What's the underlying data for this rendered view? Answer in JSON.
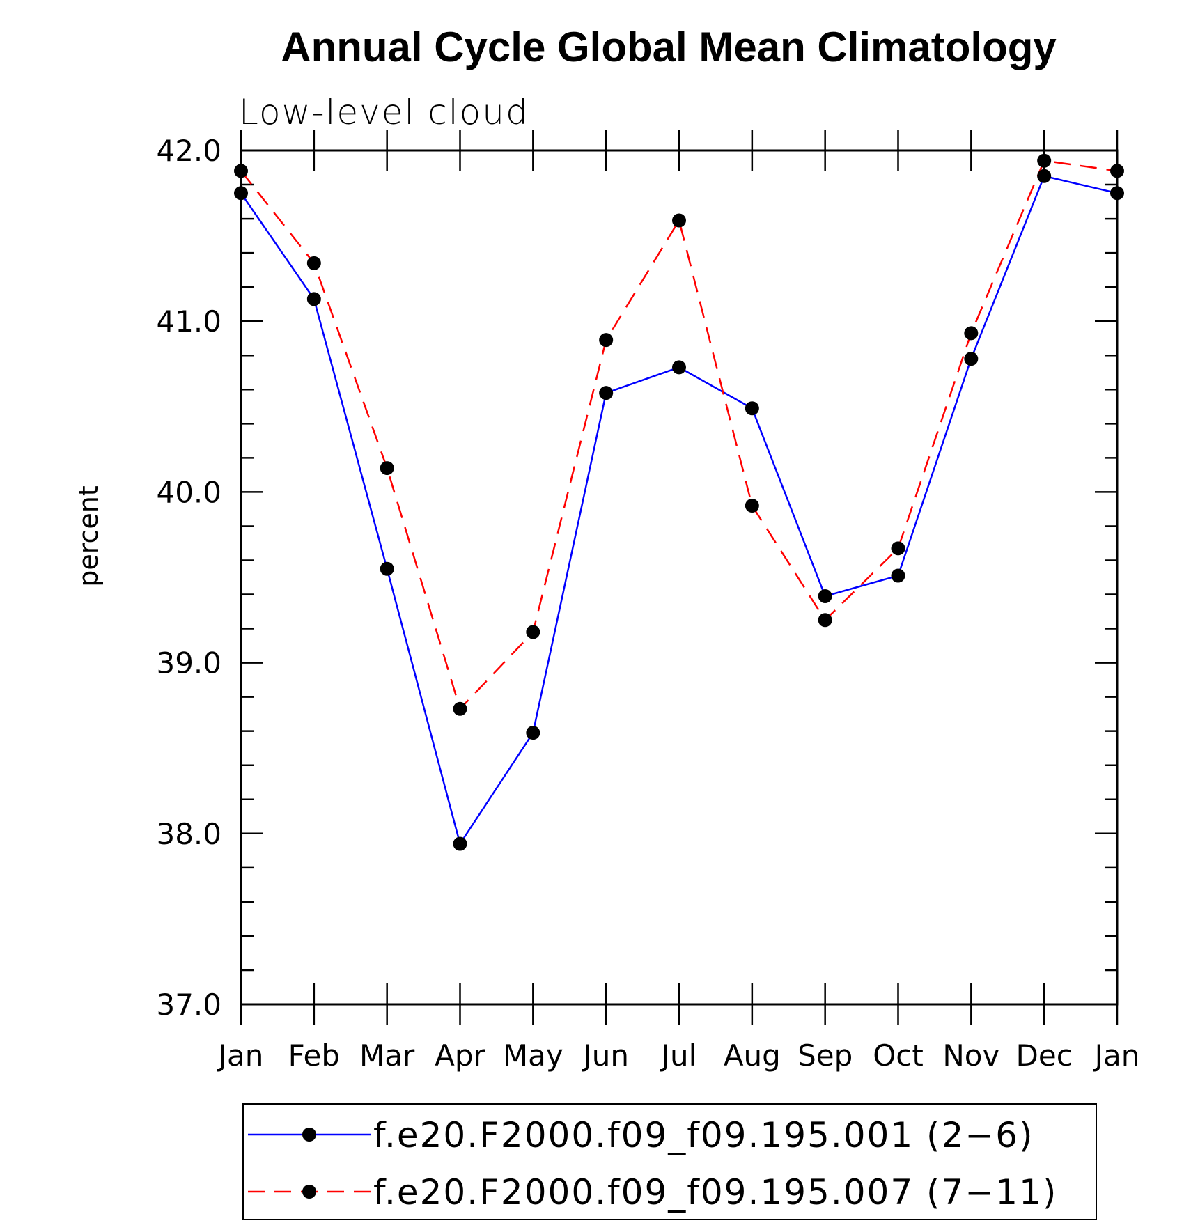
{
  "chart_data": {
    "type": "line",
    "title": "Annual Cycle Global Mean Climatology",
    "subtitle": "Low-level cloud",
    "xlabel": "",
    "ylabel": "percent",
    "ylim": [
      37.0,
      42.0
    ],
    "yticks": [
      "42.0",
      "41.0",
      "40.0",
      "39.0",
      "38.0",
      "37.0"
    ],
    "categories": [
      "Jan",
      "Feb",
      "Mar",
      "Apr",
      "May",
      "Jun",
      "Jul",
      "Aug",
      "Sep",
      "Oct",
      "Nov",
      "Dec",
      "Jan"
    ],
    "series": [
      {
        "name": "f.e20.F2000.f09_f09.195.001 (2−6)",
        "color": "#0000ff",
        "style": "solid",
        "values": [
          41.75,
          41.13,
          39.55,
          37.94,
          38.59,
          40.58,
          40.73,
          40.49,
          39.39,
          39.51,
          40.78,
          41.85,
          41.75
        ]
      },
      {
        "name": "f.e20.F2000.f09_f09.195.007 (7−11)",
        "color": "#ff0000",
        "style": "dashed",
        "values": [
          41.88,
          41.34,
          40.14,
          38.73,
          39.18,
          40.89,
          41.59,
          39.92,
          39.25,
          39.67,
          40.93,
          41.94,
          41.88
        ]
      }
    ],
    "marker_color": "#000000",
    "legend_position": "bottom"
  }
}
